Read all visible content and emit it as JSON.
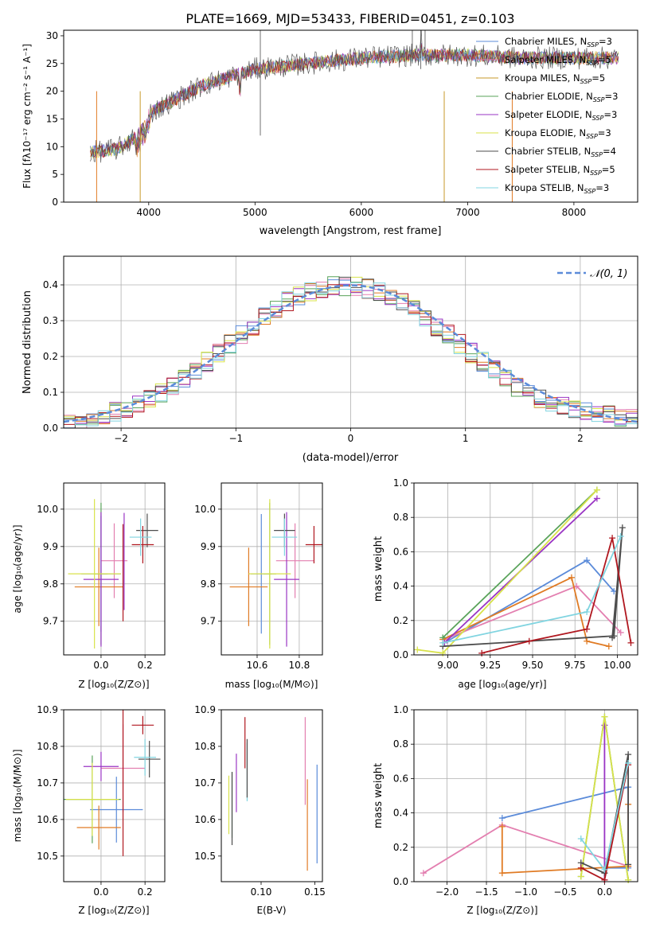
{
  "title": "PLATE=1669, MJD=53433, FIBERID=0451, z=0.103",
  "colors": {
    "c0": "#5b8bd9",
    "c1": "#e07b24",
    "c2": "#c79a2a",
    "c3": "#59a35a",
    "c4": "#9a35c4",
    "c5": "#d8e24a",
    "c6": "#4d4d4d",
    "c7": "#b0171f",
    "c8": "#80d4e0",
    "pink": "#e37fb0",
    "lime": "#9ad43a",
    "grid": "#b0b0b0"
  },
  "spectrum": {
    "xlabel": "wavelength [Angstrom, rest frame]",
    "ylabel": "Flux [fλ10⁻¹⁷ erg cm⁻² s⁻¹ A⁻¹]",
    "xticks": [
      "4000",
      "5000",
      "6000",
      "7000",
      "8000"
    ],
    "yticks": [
      "0",
      "5",
      "10",
      "15",
      "20",
      "25",
      "30"
    ],
    "legend": [
      {
        "label": "Chabrier MILES, N",
        "sub": "SSP",
        "tail": "=3",
        "color": "c0"
      },
      {
        "label": "Salpeter MILES, N",
        "sub": "SSP",
        "tail": "=5",
        "color": "pink"
      },
      {
        "label": "Kroupa MILES, N",
        "sub": "SSP",
        "tail": "=5",
        "color": "c2"
      },
      {
        "label": "Chabrier ELODIE, N",
        "sub": "SSP",
        "tail": "=3",
        "color": "c3"
      },
      {
        "label": "Salpeter ELODIE, N",
        "sub": "SSP",
        "tail": "=3",
        "color": "c4"
      },
      {
        "label": "Kroupa ELODIE, N",
        "sub": "SSP",
        "tail": "=3",
        "color": "c5"
      },
      {
        "label": "Chabrier STELIB, N",
        "sub": "SSP",
        "tail": "=4",
        "color": "c6"
      },
      {
        "label": "Salpeter STELIB, N",
        "sub": "SSP",
        "tail": "=5",
        "color": "c7"
      },
      {
        "label": "Kroupa STELIB, N",
        "sub": "SSP",
        "tail": "=3",
        "color": "c8"
      }
    ]
  },
  "histogram": {
    "xlabel": "(data-model)/error",
    "ylabel": "Normed distribution",
    "xticks": [
      "−2",
      "−1",
      "0",
      "1",
      "2"
    ],
    "yticks": [
      "0.0",
      "0.1",
      "0.2",
      "0.3",
      "0.4"
    ],
    "legend_label": "𝒩(0, 1)"
  },
  "panels": {
    "age_vs_Z": {
      "xlabel": "Z [log₁₀(Z/Z⊙)]",
      "ylabel": "age  [log₁₀(age/yr)]",
      "xticks": [
        "0.0",
        "0.2"
      ],
      "yticks": [
        "9.7",
        "9.8",
        "9.9",
        "10.0"
      ]
    },
    "age_vs_mass": {
      "xlabel": "mass [log₁₀(M/M⊙)]",
      "xticks": [
        "10.6",
        "10.8"
      ],
      "yticks": [
        "9.7",
        "9.8",
        "9.9",
        "10.0"
      ]
    },
    "mw_vs_age": {
      "xlabel": "age  [log₁₀(age/yr)]",
      "ylabel": "mass weight",
      "xticks": [
        "9.00",
        "9.25",
        "9.50",
        "9.75",
        "10.00"
      ],
      "yticks": [
        "0.0",
        "0.2",
        "0.4",
        "0.6",
        "0.8",
        "1.0"
      ]
    },
    "mass_vs_Z": {
      "xlabel": "Z [log₁₀(Z/Z⊙)]",
      "ylabel": "mass [log₁₀(M/M⊙)]",
      "xticks": [
        "0.0",
        "0.2"
      ],
      "yticks": [
        "10.5",
        "10.6",
        "10.7",
        "10.8",
        "10.9"
      ]
    },
    "mass_vs_ebv": {
      "xlabel": "E(B-V)",
      "xticks": [
        "0.10",
        "0.15"
      ],
      "yticks": [
        "10.5",
        "10.6",
        "10.7",
        "10.8",
        "10.9"
      ]
    },
    "mw_vs_Z": {
      "xlabel": "Z [log₁₀(Z/Z⊙)]",
      "ylabel": "mass weight",
      "xticks": [
        "−2.0",
        "−1.5",
        "−1.0",
        "−0.5",
        "0.0"
      ],
      "yticks": [
        "0.0",
        "0.2",
        "0.4",
        "0.6",
        "0.8",
        "1.0"
      ]
    }
  },
  "chart_data": [
    {
      "type": "line",
      "title": "PLATE=1669, MJD=53433, FIBERID=0451, z=0.103",
      "xlabel": "wavelength [Angstrom, rest frame]",
      "ylabel": "Flux [fλ10⁻¹⁷ erg cm⁻² s⁻¹ A⁻¹]",
      "xlim": [
        3200,
        8600
      ],
      "ylim": [
        0,
        31
      ],
      "grid": false,
      "legend_position": "top-right",
      "continuum_x": [
        3450,
        3700,
        3900,
        4000,
        4200,
        4500,
        5000,
        5500,
        6000,
        6500,
        7000,
        7500,
        8000,
        8400
      ],
      "continuum_y": [
        9,
        9.5,
        12,
        16,
        18,
        21,
        24,
        25,
        26,
        26.5,
        26.5,
        26,
        26,
        26
      ],
      "series": [
        "Chabrier MILES, NSSP=3",
        "Salpeter MILES, NSSP=5",
        "Kroupa MILES, NSSP=5",
        "Chabrier ELODIE, NSSP=3",
        "Salpeter ELODIE, NSSP=3",
        "Kroupa ELODIE, NSSP=3",
        "Chabrier STELIB, NSSP=4",
        "Salpeter STELIB, NSSP=5",
        "Kroupa STELIB, NSSP=3"
      ]
    },
    {
      "type": "bar",
      "xlabel": "(data-model)/error",
      "ylabel": "Normed distribution",
      "xlim": [
        -2.5,
        2.5
      ],
      "ylim": [
        0,
        0.48
      ],
      "grid": true,
      "legend_position": "top-right",
      "bins_x": [
        -2.5,
        -2.4,
        -2.3,
        -2.2,
        -2.1,
        -2.0,
        -1.9,
        -1.8,
        -1.7,
        -1.6,
        -1.5,
        -1.4,
        -1.3,
        -1.2,
        -1.1,
        -1.0,
        -0.9,
        -0.8,
        -0.7,
        -0.6,
        -0.5,
        -0.4,
        -0.3,
        -0.2,
        -0.1,
        0.0,
        0.1,
        0.2,
        0.3,
        0.4,
        0.5,
        0.6,
        0.7,
        0.8,
        0.9,
        1.0,
        1.1,
        1.2,
        1.3,
        1.4,
        1.5,
        1.6,
        1.7,
        1.8,
        1.9,
        2.0,
        2.1,
        2.2,
        2.3,
        2.4
      ],
      "values": [
        0.02,
        0.025,
        0.03,
        0.035,
        0.045,
        0.055,
        0.065,
        0.08,
        0.1,
        0.12,
        0.14,
        0.16,
        0.185,
        0.21,
        0.235,
        0.26,
        0.285,
        0.31,
        0.33,
        0.355,
        0.37,
        0.38,
        0.39,
        0.4,
        0.395,
        0.395,
        0.39,
        0.38,
        0.37,
        0.35,
        0.33,
        0.31,
        0.285,
        0.26,
        0.235,
        0.21,
        0.185,
        0.16,
        0.135,
        0.115,
        0.095,
        0.08,
        0.07,
        0.06,
        0.05,
        0.045,
        0.04,
        0.035,
        0.03,
        0.03
      ],
      "normal": {
        "name": "𝒩(0, 1)",
        "mean": 0,
        "sigma": 1
      }
    },
    {
      "type": "scatter",
      "name": "age vs Z",
      "xlabel": "Z [log₁₀(Z/Z⊙)]",
      "ylabel": "age  [log₁₀(age/yr)]",
      "xlim": [
        -0.17,
        0.29
      ],
      "ylim": [
        9.61,
        10.07
      ],
      "grid": true,
      "points": [
        {
          "c": "c0",
          "x": 0.0,
          "y": 9.827,
          "xerr": 0.09,
          "yerr": 0.155
        },
        {
          "c": "pink",
          "x": 0.06,
          "y": 9.862,
          "xerr": 0.06,
          "yerr": 0.1
        },
        {
          "c": "c1",
          "x": -0.01,
          "y": 9.792,
          "xerr": 0.11,
          "yerr": 0.105
        },
        {
          "c": "c3",
          "x": 0.0,
          "y": 9.827,
          "xerr": 0.03,
          "yerr": 0.19
        },
        {
          "c": "c4",
          "x": 0.0,
          "y": 9.812,
          "xerr": 0.08,
          "yerr": 0.18
        },
        {
          "c": "c5",
          "x": -0.03,
          "y": 9.827,
          "xerr": 0.12,
          "yerr": 0.2
        },
        {
          "c": "c6",
          "x": 0.21,
          "y": 9.943,
          "xerr": 0.05,
          "yerr": 0.045
        },
        {
          "c": "c7",
          "x": 0.19,
          "y": 9.905,
          "xerr": 0.05,
          "yerr": 0.05
        },
        {
          "c": "c8",
          "x": 0.18,
          "y": 9.925,
          "xerr": 0.05,
          "yerr": 0.05
        },
        {
          "c": "c7",
          "x": 0.1,
          "y": 9.83,
          "xerr": 0.0,
          "yerr": 0.13
        },
        {
          "c": "c4",
          "x": 0.105,
          "y": 9.86,
          "xerr": 0.0,
          "yerr": 0.13
        }
      ]
    },
    {
      "type": "scatter",
      "name": "age vs mass",
      "xlabel": "mass [log₁₀(M/M⊙)]",
      "xlim": [
        10.43,
        10.91
      ],
      "ylim": [
        9.61,
        10.07
      ],
      "grid": true,
      "points": [
        {
          "c": "c0",
          "x": 10.62,
          "y": 9.827,
          "xerr": 0.05,
          "yerr": 0.16
        },
        {
          "c": "pink",
          "x": 10.78,
          "y": 9.862,
          "xerr": 0.09,
          "yerr": 0.1
        },
        {
          "c": "c1",
          "x": 10.56,
          "y": 9.792,
          "xerr": 0.09,
          "yerr": 0.105
        },
        {
          "c": "c3",
          "x": 10.66,
          "y": 9.827,
          "xerr": 0.03,
          "yerr": 0.19
        },
        {
          "c": "c4",
          "x": 10.74,
          "y": 9.812,
          "xerr": 0.06,
          "yerr": 0.18
        },
        {
          "c": "c5",
          "x": 10.66,
          "y": 9.827,
          "xerr": 0.1,
          "yerr": 0.2
        },
        {
          "c": "c6",
          "x": 10.73,
          "y": 9.943,
          "xerr": 0.05,
          "yerr": 0.045
        },
        {
          "c": "c7",
          "x": 10.87,
          "y": 9.905,
          "xerr": 0.04,
          "yerr": 0.05
        },
        {
          "c": "c8",
          "x": 10.73,
          "y": 9.925,
          "xerr": 0.06,
          "yerr": 0.05
        }
      ]
    },
    {
      "type": "line",
      "name": "mass weight vs age",
      "xlabel": "age  [log₁₀(age/yr)]",
      "ylabel": "mass weight",
      "xlim": [
        8.8,
        10.12
      ],
      "ylim": [
        0,
        1.0
      ],
      "grid": true,
      "series": [
        {
          "c": "c0",
          "x": [
            8.98,
            9.82,
            9.98
          ],
          "y": [
            0.07,
            0.55,
            0.37
          ]
        },
        {
          "c": "pink",
          "x": [
            8.98,
            9.76,
            10.02
          ],
          "y": [
            0.09,
            0.4,
            0.13
          ]
        },
        {
          "c": "c1",
          "x": [
            8.97,
            9.73,
            9.82,
            9.95
          ],
          "y": [
            0.09,
            0.45,
            0.08,
            0.05
          ]
        },
        {
          "c": "c3",
          "x": [
            8.97,
            9.88
          ],
          "y": [
            0.1,
            0.96
          ]
        },
        {
          "c": "c4",
          "x": [
            8.98,
            9.88
          ],
          "y": [
            0.07,
            0.91
          ]
        },
        {
          "c": "c5",
          "x": [
            8.82,
            8.97,
            9.88
          ],
          "y": [
            0.03,
            0.01,
            0.96
          ]
        },
        {
          "c": "c6",
          "x": [
            8.97,
            9.98,
            10.03,
            9.97
          ],
          "y": [
            0.05,
            0.11,
            0.74,
            0.1
          ]
        },
        {
          "c": "c7",
          "x": [
            9.2,
            9.48,
            9.82,
            9.97,
            10.08
          ],
          "y": [
            0.01,
            0.08,
            0.15,
            0.68,
            0.07
          ]
        },
        {
          "c": "c8",
          "x": [
            8.97,
            9.82,
            10.02
          ],
          "y": [
            0.07,
            0.25,
            0.69
          ]
        }
      ]
    },
    {
      "type": "scatter",
      "name": "mass vs Z",
      "xlabel": "Z [log₁₀(Z/Z⊙)]",
      "ylabel": "mass [log₁₀(M/M⊙)]",
      "xlim": [
        -0.17,
        0.29
      ],
      "ylim": [
        10.43,
        10.9
      ],
      "grid": true,
      "points": [
        {
          "c": "c0",
          "x": 0.07,
          "y": 10.627,
          "xerr": 0.12,
          "yerr": 0.09
        },
        {
          "c": "pink",
          "x": 0.1,
          "y": 10.74,
          "xerr": 0.1,
          "yerr": 0.12
        },
        {
          "c": "c1",
          "x": -0.01,
          "y": 10.578,
          "xerr": 0.1,
          "yerr": 0.06
        },
        {
          "c": "c3",
          "x": -0.04,
          "y": 10.655,
          "xerr": 0.13,
          "yerr": 0.12
        },
        {
          "c": "c4",
          "x": 0.0,
          "y": 10.745,
          "xerr": 0.08,
          "yerr": 0.04
        },
        {
          "c": "c5",
          "x": -0.04,
          "y": 10.655,
          "xerr": 0.12,
          "yerr": 0.1
        },
        {
          "c": "c6",
          "x": 0.22,
          "y": 10.765,
          "xerr": 0.05,
          "yerr": 0.05
        },
        {
          "c": "c7",
          "x": 0.19,
          "y": 10.858,
          "xerr": 0.05,
          "yerr": 0.025
        },
        {
          "c": "c8",
          "x": 0.2,
          "y": 10.77,
          "xerr": 0.05,
          "yerr": 0.05
        },
        {
          "c": "c7",
          "x": 0.1,
          "y": 10.7,
          "xerr": 0.0,
          "yerr": 0.2
        }
      ]
    },
    {
      "type": "scatter",
      "name": "mass vs E(B-V)",
      "xlabel": "E(B-V)",
      "xlim": [
        0.063,
        0.157
      ],
      "ylim": [
        10.43,
        10.9
      ],
      "grid": false,
      "points": [
        {
          "c": "c0",
          "x": 0.152,
          "y": 10.615,
          "yerr": 0.135
        },
        {
          "c": "pink",
          "x": 0.141,
          "y": 10.76,
          "yerr": 0.12
        },
        {
          "c": "c1",
          "x": 0.143,
          "y": 10.585,
          "yerr": 0.125
        },
        {
          "c": "c3",
          "x": 0.073,
          "y": 10.64,
          "yerr": 0.09
        },
        {
          "c": "c4",
          "x": 0.077,
          "y": 10.7,
          "yerr": 0.08
        },
        {
          "c": "c5",
          "x": 0.07,
          "y": 10.64,
          "yerr": 0.08
        },
        {
          "c": "c6",
          "x": 0.073,
          "y": 10.63,
          "yerr": 0.1
        },
        {
          "c": "c7",
          "x": 0.085,
          "y": 10.81,
          "yerr": 0.07
        },
        {
          "c": "c8",
          "x": 0.087,
          "y": 10.73,
          "yerr": 0.08
        },
        {
          "c": "c6",
          "x": 0.087,
          "y": 10.74,
          "yerr": 0.08
        }
      ]
    },
    {
      "type": "line",
      "name": "mass weight vs Z",
      "xlabel": "Z [log₁₀(Z/Z⊙)]",
      "ylabel": "mass weight",
      "xlim": [
        -2.42,
        0.42
      ],
      "ylim": [
        0,
        1.0
      ],
      "grid": true,
      "series": [
        {
          "c": "c0",
          "x": [
            -1.3,
            0.3,
            0.3,
            0.0
          ],
          "y": [
            0.37,
            0.55,
            0.08,
            0.08
          ]
        },
        {
          "c": "pink",
          "x": [
            -2.3,
            -1.3,
            0.3
          ],
          "y": [
            0.05,
            0.33,
            0.09
          ]
        },
        {
          "c": "c1",
          "x": [
            -1.3,
            -1.3,
            0.3,
            0.3
          ],
          "y": [
            0.32,
            0.05,
            0.09,
            0.45
          ]
        },
        {
          "c": "c3",
          "x": [
            -0.3,
            0.0,
            0.3
          ],
          "y": [
            0.03,
            0.96,
            0.01
          ]
        },
        {
          "c": "c4",
          "x": [
            0.0,
            0.0
          ],
          "y": [
            0.91,
            0.01
          ]
        },
        {
          "c": "c5",
          "x": [
            -0.3,
            0.0,
            0.3
          ],
          "y": [
            0.03,
            0.96,
            0.01
          ]
        },
        {
          "c": "c6",
          "x": [
            -0.3,
            0.0,
            0.3,
            0.3
          ],
          "y": [
            0.11,
            0.05,
            0.74,
            0.1
          ]
        },
        {
          "c": "c7",
          "x": [
            -0.3,
            0.0,
            0.3
          ],
          "y": [
            0.08,
            0.01,
            0.68
          ]
        },
        {
          "c": "c8",
          "x": [
            -0.3,
            0.0,
            0.3
          ],
          "y": [
            0.25,
            0.07,
            0.69
          ]
        }
      ]
    }
  ]
}
